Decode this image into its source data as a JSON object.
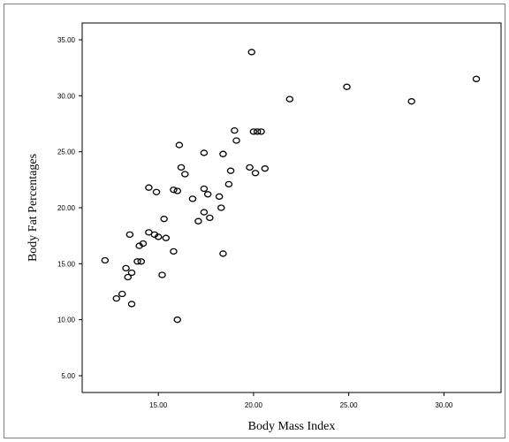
{
  "chart_data": {
    "type": "scatter",
    "title": "",
    "xlabel": "Body Mass Index",
    "ylabel": "Body Fat Percentages",
    "xlim": [
      11,
      33
    ],
    "ylim": [
      3.5,
      36.5
    ],
    "xticks": [
      15,
      20,
      25,
      30
    ],
    "xtick_labels": [
      "15.00",
      "20.00",
      "25.00",
      "30.00"
    ],
    "yticks": [
      5,
      10,
      15,
      20,
      25,
      30,
      35
    ],
    "ytick_labels": [
      "5.00",
      "10.00",
      "15.00",
      "20.00",
      "25.00",
      "30.00",
      "35.00"
    ],
    "grid": false,
    "legend": "none",
    "marker": "hollow-circle",
    "color": "#000000",
    "points": [
      [
        12.2,
        15.3
      ],
      [
        12.8,
        11.9
      ],
      [
        13.1,
        12.3
      ],
      [
        13.3,
        14.6
      ],
      [
        13.4,
        13.8
      ],
      [
        13.5,
        17.6
      ],
      [
        13.6,
        11.4
      ],
      [
        13.6,
        14.2
      ],
      [
        13.9,
        15.2
      ],
      [
        14.0,
        16.6
      ],
      [
        14.1,
        15.2
      ],
      [
        14.2,
        16.8
      ],
      [
        14.5,
        21.8
      ],
      [
        14.5,
        17.8
      ],
      [
        14.8,
        17.6
      ],
      [
        14.9,
        21.4
      ],
      [
        15.0,
        17.4
      ],
      [
        15.2,
        14.0
      ],
      [
        15.3,
        19.0
      ],
      [
        15.4,
        17.3
      ],
      [
        15.8,
        21.6
      ],
      [
        15.8,
        16.1
      ],
      [
        16.0,
        21.5
      ],
      [
        16.0,
        10.0
      ],
      [
        16.1,
        25.6
      ],
      [
        16.2,
        23.6
      ],
      [
        16.4,
        23.0
      ],
      [
        16.8,
        20.8
      ],
      [
        17.1,
        18.8
      ],
      [
        17.4,
        24.9
      ],
      [
        17.4,
        19.6
      ],
      [
        17.4,
        21.7
      ],
      [
        17.6,
        21.2
      ],
      [
        17.7,
        19.1
      ],
      [
        18.2,
        21.0
      ],
      [
        18.3,
        20.0
      ],
      [
        18.4,
        24.8
      ],
      [
        18.4,
        15.9
      ],
      [
        18.7,
        22.1
      ],
      [
        18.8,
        23.3
      ],
      [
        19.0,
        26.9
      ],
      [
        19.1,
        26.0
      ],
      [
        19.8,
        23.6
      ],
      [
        19.9,
        33.9
      ],
      [
        20.0,
        26.8
      ],
      [
        20.1,
        23.1
      ],
      [
        20.2,
        26.8
      ],
      [
        20.4,
        26.8
      ],
      [
        20.6,
        23.5
      ],
      [
        21.9,
        29.7
      ],
      [
        24.9,
        30.8
      ],
      [
        28.3,
        29.5
      ],
      [
        31.7,
        31.5
      ]
    ]
  }
}
